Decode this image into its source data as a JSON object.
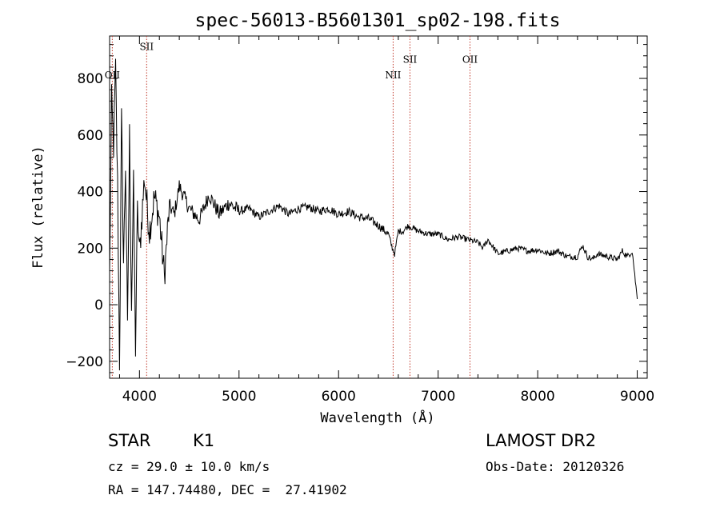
{
  "chart_data": {
    "type": "line",
    "title": "spec-56013-B5601301_sp02-198.fits",
    "xlabel": "Wavelength (Å)",
    "ylabel": "Flux (relative)",
    "xlim": [
      3700,
      9100
    ],
    "ylim": [
      -260,
      950
    ],
    "x_ticks": [
      4000,
      5000,
      6000,
      7000,
      8000,
      9000
    ],
    "y_ticks": [
      -200,
      0,
      200,
      400,
      600,
      800
    ],
    "x_tick_labels": [
      "4000",
      "5000",
      "6000",
      "7000",
      "8000",
      "9000"
    ],
    "y_tick_labels": [
      "−200",
      "0",
      "200",
      "400",
      "600",
      "800"
    ],
    "grid": false,
    "series": [
      {
        "color": "#000000",
        "x": [
          3700,
          3720,
          3740,
          3760,
          3780,
          3800,
          3820,
          3840,
          3860,
          3880,
          3900,
          3920,
          3940,
          3960,
          3980,
          4000,
          4050,
          4100,
          4150,
          4200,
          4250,
          4300,
          4350,
          4400,
          4500,
          4600,
          4700,
          4800,
          4900,
          5000,
          5100,
          5200,
          5300,
          5400,
          5500,
          5600,
          5700,
          5800,
          5900,
          6000,
          6100,
          6200,
          6300,
          6400,
          6500,
          6540,
          6563,
          6600,
          6650,
          6700,
          6750,
          6800,
          6900,
          7000,
          7100,
          7200,
          7300,
          7400,
          7450,
          7500,
          7600,
          7700,
          7800,
          7900,
          8000,
          8100,
          8200,
          8300,
          8400,
          8450,
          8500,
          8550,
          8600,
          8700,
          8800,
          8850,
          8900,
          8950,
          9000
        ],
        "y": [
          100,
          720,
          560,
          830,
          420,
          -200,
          650,
          150,
          500,
          -100,
          600,
          0,
          420,
          -150,
          330,
          180,
          450,
          260,
          380,
          310,
          100,
          350,
          320,
          420,
          340,
          300,
          390,
          320,
          360,
          330,
          340,
          310,
          330,
          350,
          320,
          340,
          345,
          330,
          340,
          320,
          330,
          310,
          305,
          280,
          250,
          200,
          180,
          260,
          260,
          280,
          270,
          260,
          250,
          250,
          230,
          240,
          230,
          220,
          200,
          230,
          180,
          190,
          200,
          190,
          195,
          180,
          190,
          170,
          170,
          210,
          170,
          160,
          180,
          170,
          160,
          190,
          170,
          190,
          20
        ]
      }
    ],
    "lines": [
      {
        "label": "OII",
        "x": 3727,
        "label_y": 800
      },
      {
        "label": "SII",
        "x": 4072,
        "label_y": 900
      },
      {
        "label": "NII",
        "x": 6548,
        "label_y": 800
      },
      {
        "label": "SII",
        "x": 6717,
        "label_y": 855
      },
      {
        "label": "OII",
        "x": 7320,
        "label_y": 855
      }
    ]
  },
  "footer": {
    "object_class": "STAR",
    "subclass": "K1",
    "cz": "cz = 29.0 ± 10.0 km/s",
    "coords": "RA = 147.74480, DEC =  27.41902",
    "survey": "LAMOST DR2",
    "obs_date": "Obs-Date: 20120326"
  }
}
